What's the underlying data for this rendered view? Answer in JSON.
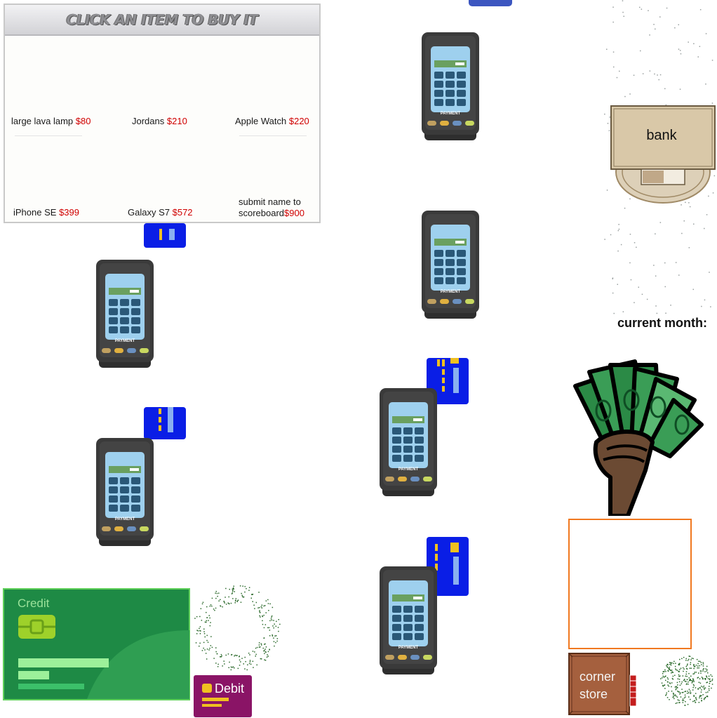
{
  "shop": {
    "title": "CLICK AN ITEM TO BUY IT",
    "items": [
      {
        "name": "large lava lamp",
        "price": "$80"
      },
      {
        "name": "Jordans",
        "price": "$210"
      },
      {
        "name": "Apple Watch",
        "price": "$220"
      },
      {
        "name": "iPhone SE",
        "price": "$399"
      },
      {
        "name": "Galaxy S7",
        "price": "$572"
      },
      {
        "name_line1": "submit name to",
        "name_line2": "scoreboard",
        "price": "$900"
      }
    ]
  },
  "terminal": {
    "label": "PAYMENT"
  },
  "bank": {
    "label": "bank"
  },
  "status": {
    "current_month_label": "current month:"
  },
  "store": {
    "label_line1": "corner",
    "label_line2": "store"
  },
  "cards": {
    "credit_label": "Credit",
    "debit_label": "Debit"
  },
  "colors": {
    "price": "#d00000",
    "blue_card": "#0a1ee6",
    "credit_green": "#1e8a45",
    "debit_purple": "#8a1466",
    "store_box_border": "#f07820",
    "bank_tan": "#d9c8a8"
  }
}
